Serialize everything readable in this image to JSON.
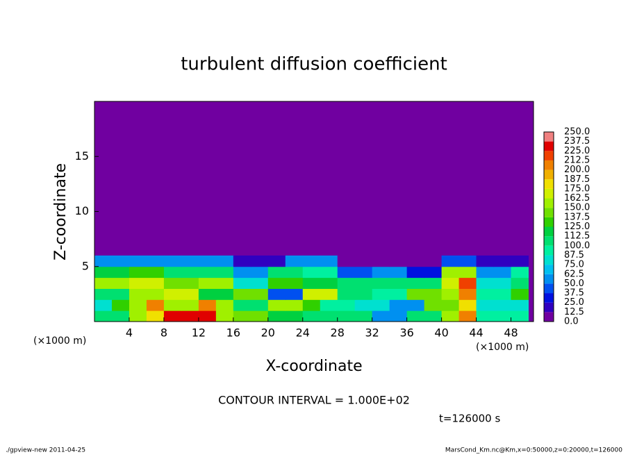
{
  "chart_data": {
    "type": "heatmap",
    "title": "turbulent diffusion coefficient",
    "x_label": "X-coordinate",
    "y_label": "Z-coordinate",
    "x_unit": "(×1000 m)",
    "note": "CONTOUR INTERVAL = 1.000E+02",
    "time": "t=126000 s",
    "footer_left": "./gpview-new  2011-04-25",
    "footer_right": "MarsCond_Km.nc@Km,x=0:50000,z=0:20000,t=126000",
    "xlim": [
      0,
      50.6
    ],
    "ylim": [
      0,
      20
    ],
    "xticks": [
      4,
      8,
      12,
      16,
      20,
      24,
      28,
      32,
      36,
      40,
      44,
      48
    ],
    "yticks": [
      5,
      10,
      15
    ],
    "xbins": [
      0,
      2,
      4,
      6,
      8,
      10,
      12,
      14,
      16,
      18,
      20,
      22,
      24,
      26,
      28,
      30,
      32,
      34,
      36,
      38,
      40,
      42,
      44,
      46,
      48,
      50
    ],
    "ybins": [
      0,
      1,
      2,
      3,
      4,
      5,
      6
    ],
    "values": [
      [
        110,
        110,
        150,
        180,
        230,
        230,
        230,
        160,
        140,
        140,
        120,
        120,
        100,
        100,
        110,
        110,
        60,
        60,
        100,
        100,
        150,
        200,
        90,
        90,
        90
      ],
      [
        80,
        130,
        150,
        210,
        160,
        160,
        200,
        150,
        110,
        110,
        150,
        150,
        130,
        90,
        90,
        80,
        80,
        50,
        50,
        140,
        140,
        180,
        80,
        80,
        80
      ],
      [
        110,
        110,
        150,
        150,
        170,
        170,
        120,
        120,
        140,
        140,
        40,
        40,
        170,
        170,
        110,
        110,
        90,
        90,
        140,
        140,
        160,
        210,
        90,
        90,
        130
      ],
      [
        150,
        150,
        170,
        170,
        140,
        140,
        150,
        150,
        80,
        80,
        130,
        130,
        120,
        120,
        110,
        110,
        100,
        100,
        110,
        110,
        170,
        220,
        80,
        80,
        100
      ],
      [
        120,
        120,
        130,
        130,
        100,
        100,
        110,
        110,
        60,
        60,
        110,
        110,
        90,
        90,
        40,
        40,
        50,
        50,
        30,
        30,
        150,
        150,
        60,
        60,
        90
      ],
      [
        60,
        60,
        60,
        60,
        60,
        60,
        60,
        60,
        20,
        20,
        20,
        50,
        50,
        50,
        5,
        5,
        5,
        5,
        5,
        5,
        40,
        40,
        20,
        20,
        20
      ]
    ],
    "levels": [
      {
        "value": 0,
        "label": "0.0"
      },
      12.5,
      {
        "value": 25,
        "label": "25.0"
      },
      37.5,
      {
        "value": 50,
        "label": "50.0"
      },
      62.5,
      {
        "value": 75,
        "label": "75.0"
      },
      87.5,
      {
        "value": 100,
        "label": "100.0"
      },
      112.5,
      {
        "value": 125,
        "label": "125.0"
      },
      137.5,
      {
        "value": 150,
        "label": "150.0"
      },
      162.5,
      {
        "value": 175,
        "label": "175.0"
      },
      187.5,
      {
        "value": 200,
        "label": "200.0"
      },
      212.5,
      {
        "value": 225,
        "label": "225.0"
      },
      237.5,
      {
        "value": 250,
        "label": "250.0"
      }
    ],
    "colors": [
      "#7000a0",
      "#3000c0",
      "#0010e0",
      "#0050f0",
      "#0090f0",
      "#00c0f0",
      "#00e0d0",
      "#00f0a0",
      "#00e070",
      "#00d040",
      "#30d000",
      "#70e000",
      "#a0f000",
      "#d0f000",
      "#f0e000",
      "#f0b000",
      "#f08000",
      "#f04000",
      "#e00000",
      "#f08080"
    ]
  }
}
